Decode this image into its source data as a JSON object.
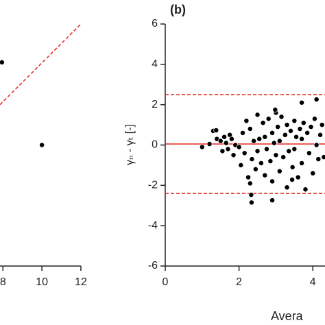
{
  "chart_data": [
    {
      "type": "scatter",
      "xlim": [
        7.85,
        12
      ],
      "ylim": [
        0,
        12
      ],
      "xticks": [
        8,
        10,
        12
      ],
      "series": [
        {
          "color": "#000000",
          "x": [
            7.95,
            10
          ],
          "values": [
            10.1,
            6.0
          ]
        }
      ],
      "lines": [
        {
          "color": "#e0261f",
          "dash": true,
          "x": [
            7.85,
            12
          ],
          "values": [
            8.0,
            12.0
          ]
        }
      ]
    },
    {
      "type": "scatter",
      "title": "(b)",
      "xlabel": "Avera",
      "ylabel": "γₙ - γₜ [-]",
      "xlim": [
        0,
        4.33
      ],
      "ylim": [
        -6,
        6
      ],
      "xticks": [
        0,
        2,
        4
      ],
      "yticks": [
        -6,
        -4,
        -2,
        0,
        2,
        4,
        6
      ],
      "series": [
        {
          "color": "#000000",
          "x": [
            1.0,
            1.2,
            1.3,
            1.4,
            1.5,
            1.55,
            1.6,
            1.65,
            1.7,
            1.75,
            1.8,
            1.85,
            1.9,
            2.0,
            2.05,
            2.1,
            2.15,
            2.2,
            2.25,
            2.3,
            2.3,
            2.35,
            2.4,
            2.45,
            2.5,
            2.5,
            2.55,
            2.6,
            2.65,
            2.7,
            2.7,
            2.75,
            2.8,
            2.85,
            2.9,
            2.9,
            2.95,
            3.0,
            3.0,
            3.05,
            3.1,
            3.1,
            3.15,
            3.2,
            3.25,
            3.3,
            3.3,
            3.35,
            3.4,
            3.45,
            3.5,
            3.5,
            3.55,
            3.6,
            3.65,
            3.7,
            3.7,
            3.75,
            3.8,
            3.85,
            3.9,
            3.95,
            4.0,
            4.05,
            4.1,
            4.15,
            4.2,
            4.25,
            4.3,
            2.33,
            2.34,
            2.9,
            3.44,
            2.98,
            1.38,
            3.7,
            4.1
          ],
          "values": [
            -0.1,
            0.05,
            0.7,
            0.3,
            0.2,
            -0.3,
            0.4,
            0.1,
            -0.2,
            0.5,
            0.3,
            -0.5,
            0.0,
            -0.1,
            -1.0,
            0.6,
            -0.4,
            1.2,
            -1.6,
            -1.9,
            0.8,
            -0.7,
            0.2,
            -1.2,
            1.5,
            -0.3,
            0.3,
            -0.9,
            1.1,
            -1.5,
            0.4,
            -0.2,
            1.3,
            -0.8,
            0.6,
            -1.8,
            0.1,
            1.6,
            -0.5,
            0.9,
            -1.3,
            0.2,
            1.4,
            -0.6,
            0.5,
            -2.1,
            1.0,
            -0.3,
            0.7,
            -1.1,
            1.2,
            -0.2,
            0.4,
            -1.6,
            0.8,
            -0.9,
            0.3,
            1.1,
            -2.2,
            0.6,
            -0.4,
            0.9,
            -1.4,
            1.3,
            0.0,
            -0.7,
            0.5,
            1.0,
            -0.6,
            -2.47,
            -2.85,
            -2.74,
            -1.72,
            1.75,
            0.73,
            2.1,
            2.26
          ]
        }
      ],
      "hlines": [
        {
          "value": 2.5,
          "color": "#e0261f",
          "dash": true
        },
        {
          "value": 0.05,
          "color": "#e0261f",
          "dash": false
        },
        {
          "value": -2.4,
          "color": "#e0261f",
          "dash": true
        }
      ]
    }
  ]
}
